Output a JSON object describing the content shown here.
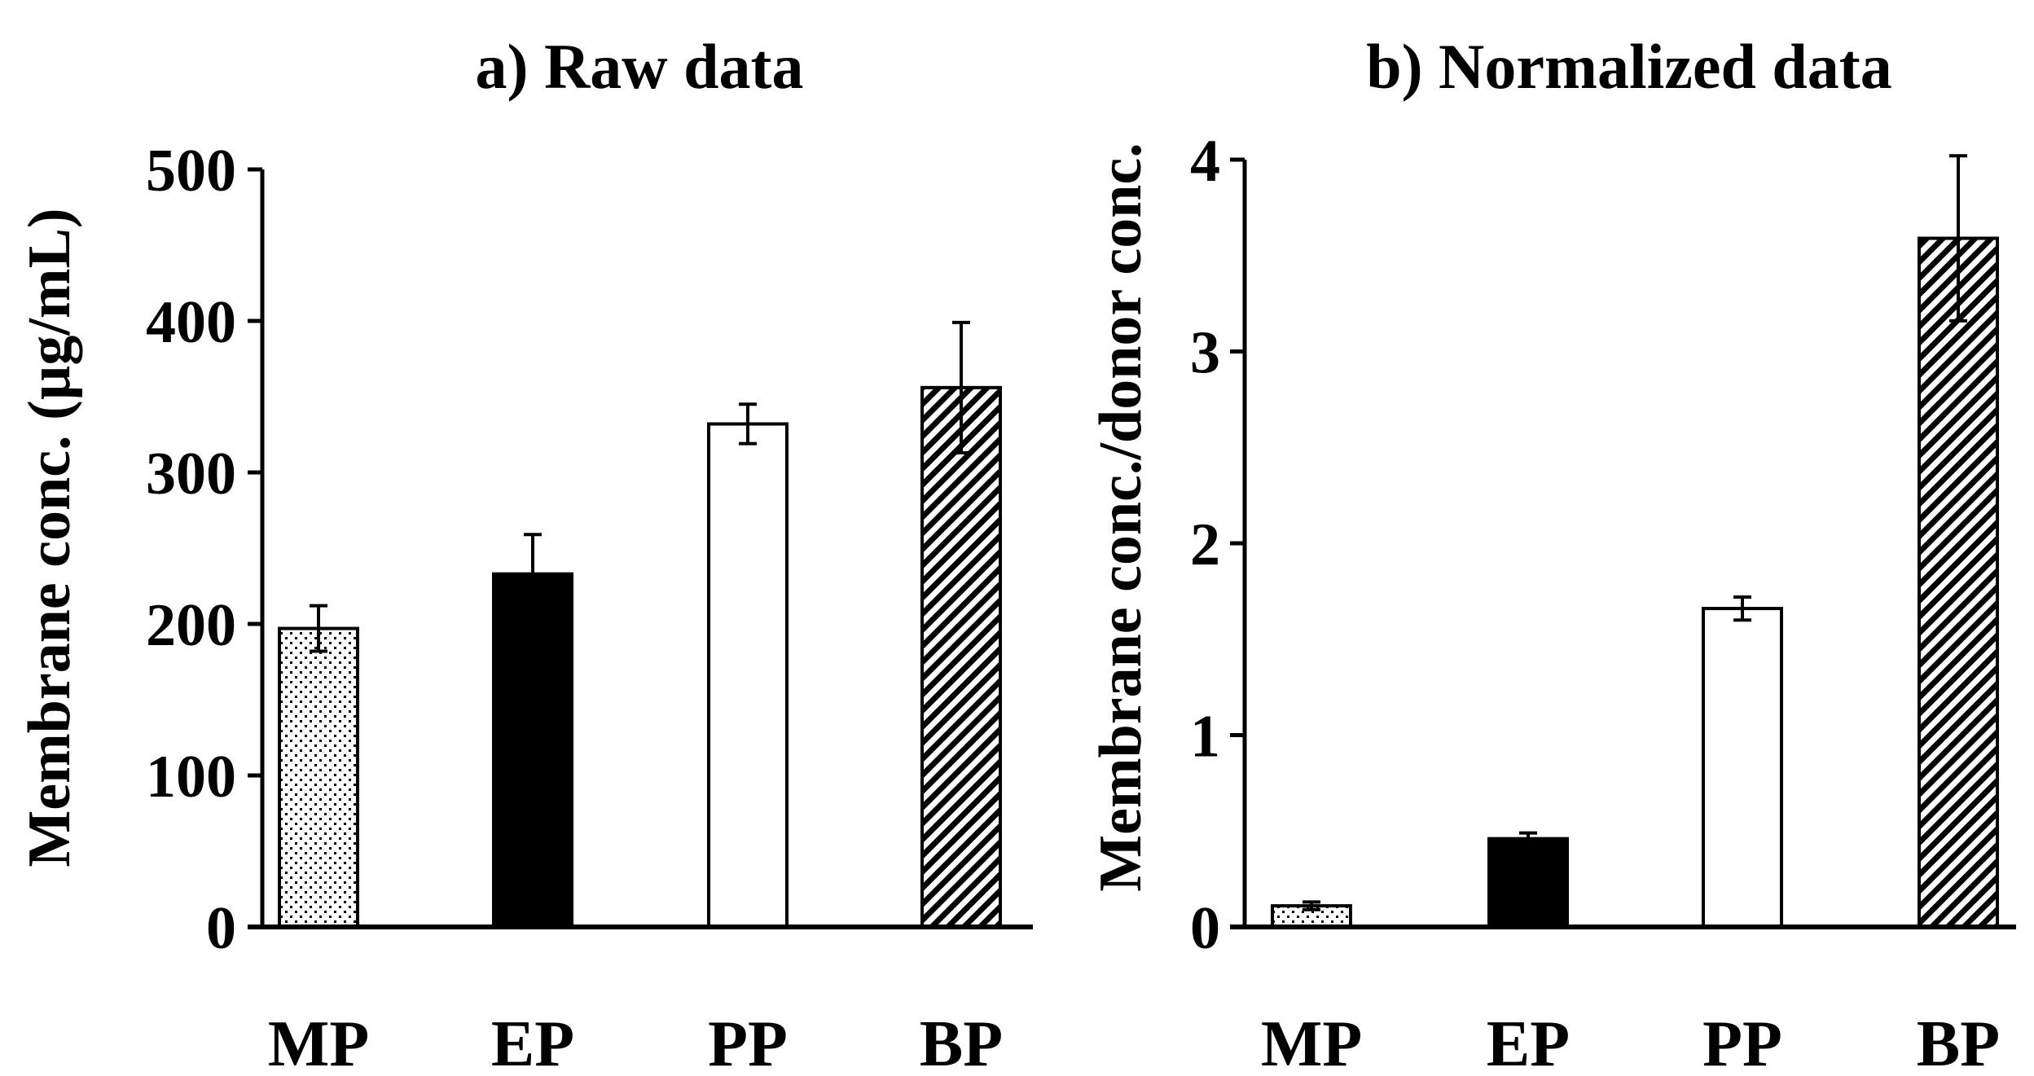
{
  "chart_data": [
    {
      "type": "bar",
      "title": "a) Raw data",
      "xlabel": "",
      "ylabel": "Membrane conc. (µg/mL)",
      "categories": [
        "MP",
        "EP",
        "PP",
        "BP"
      ],
      "values": [
        197,
        233,
        332,
        356
      ],
      "errors": [
        15,
        26,
        13,
        43
      ],
      "fills": [
        "dots",
        "solid",
        "white",
        "hatch"
      ],
      "ylim": [
        0,
        500
      ],
      "yticks": [
        0,
        100,
        200,
        300,
        400,
        500
      ],
      "grid": false,
      "legend": "none"
    },
    {
      "type": "bar",
      "title": "b) Normalized data",
      "xlabel": "",
      "ylabel": "Membrane conc./donor conc.",
      "categories": [
        "MP",
        "EP",
        "PP",
        "BP"
      ],
      "values": [
        0.11,
        0.46,
        1.66,
        3.59
      ],
      "errors": [
        0.02,
        0.03,
        0.06,
        0.43
      ],
      "fills": [
        "dots",
        "solid",
        "white",
        "hatch"
      ],
      "ylim": [
        0,
        4
      ],
      "yticks": [
        0,
        1,
        2,
        3,
        4
      ],
      "grid": false,
      "legend": "none"
    }
  ]
}
